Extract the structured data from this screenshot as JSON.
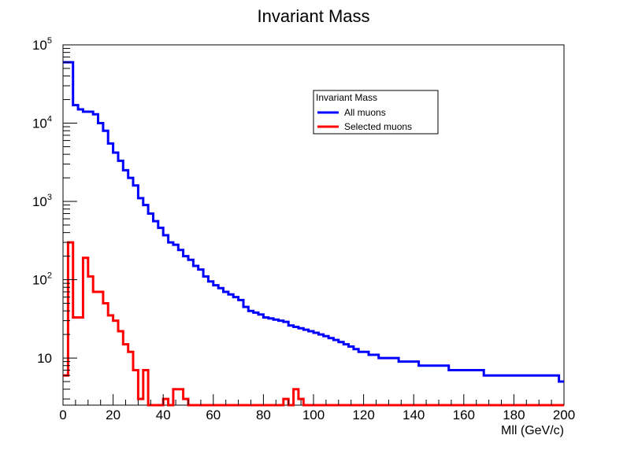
{
  "chart_data": {
    "type": "line",
    "title": "Invariant Mass",
    "xlabel": "Mll (GeV/c)",
    "ylabel": "",
    "xlim": [
      0,
      200
    ],
    "ylim": [
      2.5,
      100000
    ],
    "y_scale": "log",
    "grid": false,
    "legend": {
      "title": "Invariant Mass",
      "position": "top-right",
      "entries": [
        "All muons",
        "Selected muons"
      ]
    },
    "x_ticks": [
      "0",
      "20",
      "40",
      "60",
      "80",
      "100",
      "120",
      "140",
      "160",
      "180",
      "200"
    ],
    "y_ticks": [
      {
        "base": "10",
        "exp": "5",
        "value": 100000
      },
      {
        "base": "10",
        "exp": "4",
        "value": 10000
      },
      {
        "base": "10",
        "exp": "3",
        "value": 1000
      },
      {
        "base": "10",
        "exp": "2",
        "value": 100
      },
      {
        "base": "10",
        "exp": "",
        "value": 10
      }
    ],
    "bin_width": 2,
    "series": [
      {
        "name": "All muons",
        "color": "#0000ff",
        "values": [
          60000,
          60000,
          17000,
          15000,
          14000,
          14000,
          13000,
          10000,
          8000,
          5500,
          4200,
          3300,
          2500,
          2000,
          1600,
          1100,
          900,
          700,
          560,
          460,
          370,
          300,
          280,
          240,
          200,
          180,
          150,
          135,
          110,
          95,
          85,
          78,
          70,
          65,
          60,
          55,
          45,
          40,
          38,
          36,
          33,
          32,
          31,
          30,
          29,
          26,
          25,
          24,
          23,
          22,
          21,
          20,
          19,
          18,
          17,
          16,
          15,
          14,
          13,
          12,
          12,
          11,
          11,
          10,
          10,
          10,
          10,
          9,
          9,
          9,
          9,
          8,
          8,
          8,
          8,
          8,
          8,
          7,
          7,
          7,
          7,
          7,
          7,
          7,
          6,
          6,
          6,
          6,
          6,
          6,
          6,
          6,
          6,
          6,
          6,
          6,
          6,
          6,
          6,
          5
        ]
      },
      {
        "name": "Selected muons",
        "color": "#ff0000",
        "values": [
          6,
          300,
          33,
          33,
          190,
          110,
          70,
          70,
          50,
          35,
          30,
          22,
          15,
          12,
          7,
          3,
          7,
          2.5,
          2.5,
          2.5,
          3,
          2.5,
          4,
          4,
          3,
          2.5,
          2.5,
          2.5,
          2.5,
          2.5,
          2.5,
          2.5,
          2.5,
          2.5,
          2.5,
          2.5,
          2.5,
          2.5,
          2.5,
          2.5,
          2.5,
          2.5,
          2.5,
          2.5,
          3,
          2.5,
          4,
          3,
          2.5,
          2.5,
          2.5,
          2.5,
          2.5,
          2.5,
          2.5,
          2.5,
          2.5,
          2.5,
          2.5,
          2.5,
          2.5,
          2.5,
          2.5,
          2.5,
          2.5,
          2.5,
          2.5,
          2.5,
          2.5,
          2.5,
          2.5,
          2.5,
          2.5,
          2.5,
          2.5,
          2.5,
          2.5,
          2.5,
          2.5,
          2.5,
          2.5,
          2.5,
          2.5,
          2.5,
          2.5,
          2.5,
          2.5,
          2.5,
          2.5,
          2.5,
          2.5,
          2.5,
          2.5,
          2.5,
          2.5,
          2.5,
          2.5,
          2.5,
          2.5,
          2.5
        ]
      }
    ]
  }
}
